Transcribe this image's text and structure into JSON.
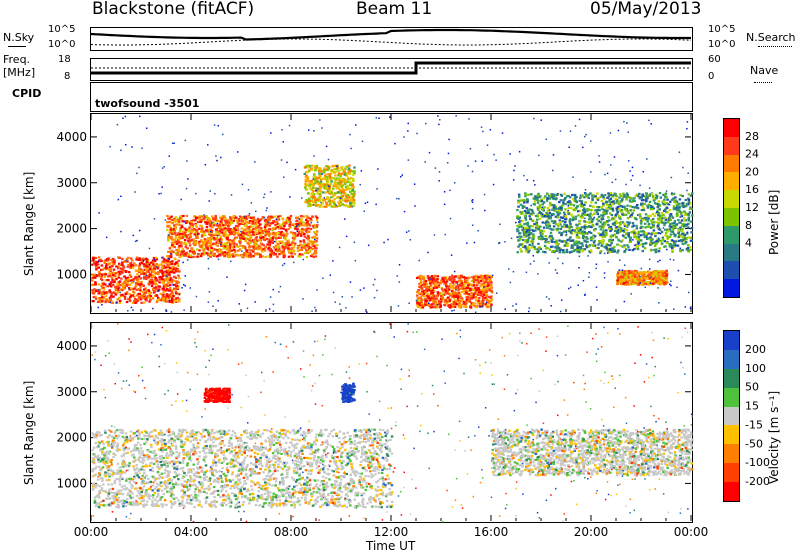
{
  "header": {
    "station": "Blackstone (fitACF)",
    "beam": "Beam 11",
    "date": "05/May/2013"
  },
  "aux_panels": {
    "nsky_label": "N.Sky",
    "nsearch_label": "N.Search",
    "freq_label_1": "Freq.",
    "freq_label_2": "[MHz]",
    "nave_label": "Nave",
    "cpid_label": "CPID",
    "cpid_value": "twofsound -3501",
    "noise_ticks_left": [
      "10^5",
      "10^0"
    ],
    "noise_ticks_right": [
      "10^5",
      "10^0"
    ],
    "freq_ticks": [
      "18",
      "8"
    ],
    "nave_ticks": [
      "60",
      "0"
    ]
  },
  "axes": {
    "xlabel": "Time UT",
    "ylabel": "Slant Range [km]",
    "x_ticks": [
      "00:00",
      "04:00",
      "08:00",
      "12:00",
      "16:00",
      "20:00",
      "00:00"
    ],
    "y_ticks": [
      "1000",
      "2000",
      "3000",
      "4000"
    ]
  },
  "colorbars": {
    "power": {
      "label": "Power [dB]",
      "ticks": [
        "28",
        "24",
        "20",
        "16",
        "12",
        "8",
        "4"
      ],
      "colors": [
        "#ff0000",
        "#ff3a1a",
        "#ff7a00",
        "#ffae00",
        "#c8d800",
        "#7ac400",
        "#2e9a6a",
        "#2a7a86",
        "#1f4fae",
        "#0018e0"
      ]
    },
    "velocity": {
      "label": "Velocity [m s⁻¹]",
      "ticks": [
        "200",
        "100",
        "50",
        "15",
        "-15",
        "-50",
        "-100",
        "-200"
      ],
      "colors": [
        "#1840c8",
        "#2a6cc0",
        "#2a8a5a",
        "#4ec23a",
        "#c8c8c8",
        "#ffc000",
        "#ff8000",
        "#ff4000",
        "#ff0000"
      ]
    }
  },
  "chart_data": [
    {
      "type": "heatmap",
      "title": "Power",
      "xlabel": "Time UT",
      "ylabel": "Slant Range [km]",
      "xlim": [
        "00:00",
        "24:00"
      ],
      "ylim": [
        180,
        4500
      ],
      "colorbar": {
        "label": "Power [dB]",
        "range": [
          0,
          30
        ]
      },
      "features": [
        {
          "time_start": 0.0,
          "time_end": 3.5,
          "range_start": 400,
          "range_end": 1400,
          "power_db": 26
        },
        {
          "time_start": 3.0,
          "time_end": 9.0,
          "range_start": 1400,
          "range_end": 2300,
          "power_db": 24
        },
        {
          "time_start": 8.5,
          "time_end": 10.5,
          "range_start": 2500,
          "range_end": 3400,
          "power_db": 18
        },
        {
          "time_start": 13.0,
          "time_end": 16.0,
          "range_start": 300,
          "range_end": 1000,
          "power_db": 25
        },
        {
          "time_start": 17.0,
          "time_end": 24.0,
          "range_start": 1500,
          "range_end": 2800,
          "power_db": 10
        },
        {
          "time_start": 21.0,
          "time_end": 23.0,
          "range_start": 800,
          "range_end": 1100,
          "power_db": 22
        }
      ]
    },
    {
      "type": "heatmap",
      "title": "Velocity",
      "xlabel": "Time UT",
      "ylabel": "Slant Range [km]",
      "xlim": [
        "00:00",
        "24:00"
      ],
      "ylim": [
        180,
        4500
      ],
      "colorbar": {
        "label": "Velocity [m s⁻¹]",
        "range": [
          -200,
          200
        ]
      },
      "features": [
        {
          "time_start": 4.5,
          "time_end": 5.5,
          "range_start": 2800,
          "range_end": 3100,
          "velocity": -200
        },
        {
          "time_start": 10.0,
          "time_end": 10.5,
          "range_start": 2800,
          "range_end": 3200,
          "velocity": 200
        },
        {
          "time_start": 0.0,
          "time_end": 12.0,
          "range_start": 500,
          "range_end": 2200,
          "velocity": 0
        },
        {
          "time_start": 16.0,
          "time_end": 24.0,
          "range_start": 1200,
          "range_end": 2200,
          "velocity": 0
        }
      ]
    }
  ]
}
